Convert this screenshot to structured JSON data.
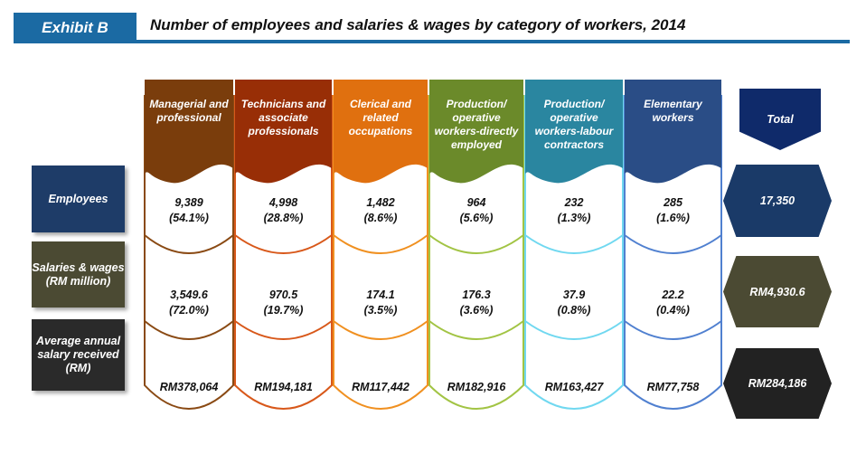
{
  "header": {
    "exhibit": "Exhibit B",
    "title": "Number of employees and salaries & wages by category of workers, 2014"
  },
  "row_labels": [
    {
      "label": "Employees",
      "color": "#1e3c68"
    },
    {
      "label": "Salaries & wages (RM million)",
      "color": "#4b4a33"
    },
    {
      "label": "Average annual salary received (RM)",
      "color": "#2a2a2a"
    }
  ],
  "columns": [
    {
      "label": "Managerial and professional",
      "color": "#7a3d0c",
      "border": "#8a4a14",
      "employees": "9,389",
      "employees_pct": "(54.1%)",
      "salaries": "3,549.6",
      "salaries_pct": "(72.0%)",
      "avg_salary": "RM378,064"
    },
    {
      "label": "Technicians and associate professionals",
      "color": "#982e06",
      "border": "#d8581a",
      "employees": "4,998",
      "employees_pct": "(28.8%)",
      "salaries": "970.5",
      "salaries_pct": "(19.7%)",
      "avg_salary": "RM194,181"
    },
    {
      "label": "Clerical and related occupations",
      "color": "#e0700f",
      "border": "#f09020",
      "employees": "1,482",
      "employees_pct": "(8.6%)",
      "salaries": "174.1",
      "salaries_pct": "(3.5%)",
      "avg_salary": "RM117,442"
    },
    {
      "label": "Production/ operative workers-directly employed",
      "color": "#6b8a2a",
      "border": "#a2c444",
      "employees": "964",
      "employees_pct": "(5.6%)",
      "salaries": "176.3",
      "salaries_pct": "(3.6%)",
      "avg_salary": "RM182,916"
    },
    {
      "label": "Production/ operative workers-labour contractors",
      "color": "#2a86a0",
      "border": "#70d8f0",
      "employees": "232",
      "employees_pct": "(1.3%)",
      "salaries": "37.9",
      "salaries_pct": "(0.8%)",
      "avg_salary": "RM163,427"
    },
    {
      "label": "Elementary workers",
      "color": "#2a4d86",
      "border": "#5080d0",
      "employees": "285",
      "employees_pct": "(1.6%)",
      "salaries": "22.2",
      "salaries_pct": "(0.4%)",
      "avg_salary": "RM77,758"
    }
  ],
  "total": {
    "label": "Total",
    "color": "#0f2a6a",
    "employees": "17,350",
    "salaries": "RM4,930.6",
    "avg_salary": "RM284,186"
  }
}
